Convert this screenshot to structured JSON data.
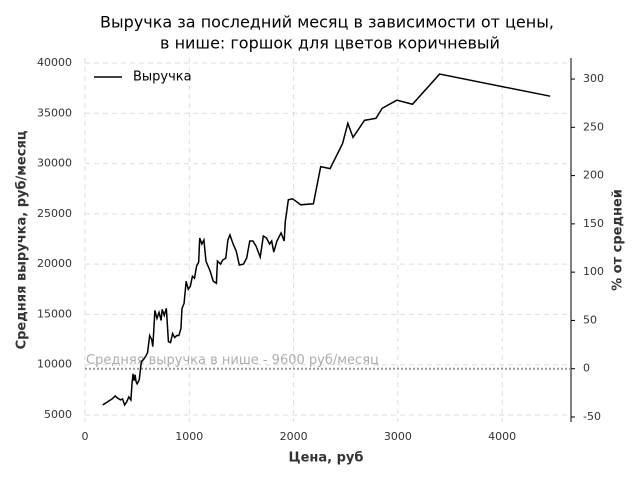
{
  "chart_data": {
    "type": "line",
    "title_lines": [
      "Выручка за последний месяц в зависимости от цены,",
      "в нише: горшок для цветов коричневый"
    ],
    "x_label": "Цена, руб",
    "y_label": "Средняя выручка, руб/месяц",
    "y2_label": "% от средней",
    "x": [
      170,
      230,
      260,
      290,
      310,
      340,
      360,
      380,
      400,
      420,
      440,
      450,
      460,
      470,
      480,
      490,
      500,
      520,
      540,
      560,
      580,
      600,
      620,
      640,
      650,
      660,
      670,
      690,
      710,
      730,
      740,
      760,
      780,
      800,
      820,
      840,
      860,
      880,
      900,
      920,
      930,
      950,
      970,
      990,
      1010,
      1030,
      1050,
      1070,
      1090,
      1100,
      1120,
      1140,
      1160,
      1200,
      1230,
      1260,
      1270,
      1300,
      1320,
      1350,
      1370,
      1390,
      1420,
      1450,
      1480,
      1520,
      1550,
      1580,
      1610,
      1640,
      1680,
      1710,
      1740,
      1770,
      1790,
      1810,
      1840,
      1880,
      1910,
      1920,
      1950,
      1990,
      2070,
      2190,
      2260,
      2350,
      2470,
      2520,
      2570,
      2680,
      2790,
      2850,
      2990,
      3140,
      3400,
      4460
    ],
    "series": [
      {
        "name": "Выручка",
        "color": "#000000",
        "values": [
          6000,
          6400,
          6600,
          6900,
          6700,
          6500,
          6600,
          6000,
          6300,
          6800,
          6500,
          8000,
          9100,
          8400,
          9000,
          8300,
          8100,
          8500,
          10300,
          10500,
          10800,
          11200,
          12900,
          12500,
          11800,
          13500,
          15400,
          14600,
          15200,
          14400,
          15500,
          14900,
          15600,
          12300,
          12200,
          13100,
          12700,
          12900,
          12900,
          13600,
          15600,
          16100,
          18300,
          17500,
          17800,
          18800,
          18600,
          19800,
          20200,
          22600,
          22000,
          22400,
          20300,
          19300,
          18300,
          18100,
          20300,
          20000,
          20400,
          20600,
          22400,
          22900,
          22000,
          21300,
          19900,
          20000,
          20600,
          22300,
          22300,
          21800,
          20700,
          22800,
          22600,
          22000,
          22300,
          21200,
          22300,
          23100,
          22300,
          24200,
          26400,
          26500,
          25900,
          26000,
          29700,
          29500,
          32000,
          34000,
          32600,
          34300,
          34500,
          35500,
          36300,
          35900,
          38900,
          36700
        ]
      }
    ],
    "hline": {
      "value": 9600,
      "label": "Средняя выручка в нише - 9600 руб/месяц",
      "color": "#999999"
    },
    "xlim": [
      0,
      4660
    ],
    "xticks": [
      0,
      1000,
      2000,
      3000,
      4000
    ],
    "ylim": [
      4304,
      40497
    ],
    "yticks": [
      5000,
      10000,
      15000,
      20000,
      25000,
      30000,
      35000,
      40000
    ],
    "y2lim": [
      -55.2,
      321.8
    ],
    "y2ticks": [
      -50,
      0,
      50,
      100,
      150,
      200,
      250,
      300
    ],
    "grid": true,
    "legend": "upper-left"
  }
}
